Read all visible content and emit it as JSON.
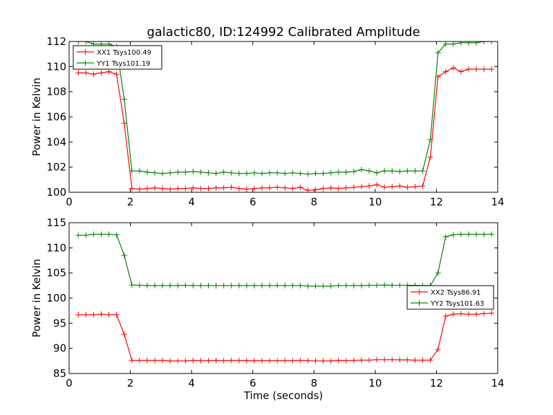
{
  "chart_data": [
    {
      "type": "line",
      "title": "galactic80, ID:124992 Calibrated Amplitude",
      "xlabel": "",
      "ylabel": "Power in Kelvin",
      "xlim": [
        0,
        14
      ],
      "ylim": [
        100,
        112
      ],
      "xticks": [
        "0",
        "2",
        "4",
        "6",
        "8",
        "10",
        "12",
        "14"
      ],
      "yticks": [
        "100",
        "102",
        "104",
        "106",
        "108",
        "110",
        "112"
      ],
      "legend_position": "top-left",
      "x": [
        0.3,
        0.55,
        0.8,
        1.05,
        1.3,
        1.55,
        1.8,
        2.05,
        2.3,
        2.55,
        2.8,
        3.05,
        3.3,
        3.55,
        3.8,
        4.05,
        4.3,
        4.55,
        4.8,
        5.05,
        5.3,
        5.55,
        5.8,
        6.05,
        6.3,
        6.55,
        6.8,
        7.05,
        7.3,
        7.55,
        7.8,
        8.05,
        8.3,
        8.55,
        8.8,
        9.05,
        9.3,
        9.55,
        9.8,
        10.05,
        10.3,
        10.55,
        10.8,
        11.05,
        11.3,
        11.55,
        11.8,
        12.05,
        12.3,
        12.55,
        12.8,
        13.05,
        13.3,
        13.55,
        13.8
      ],
      "series": [
        {
          "name": "XX1 Tsys100.49",
          "color": "#ff0000",
          "values": [
            109.5,
            109.5,
            109.4,
            109.5,
            109.6,
            109.4,
            105.5,
            100.3,
            100.25,
            100.3,
            100.35,
            100.3,
            100.25,
            100.3,
            100.3,
            100.35,
            100.3,
            100.3,
            100.35,
            100.35,
            100.4,
            100.3,
            100.25,
            100.3,
            100.35,
            100.35,
            100.4,
            100.35,
            100.3,
            100.4,
            100.15,
            100.2,
            100.3,
            100.35,
            100.3,
            100.35,
            100.4,
            100.45,
            100.5,
            100.6,
            100.4,
            100.45,
            100.5,
            100.4,
            100.45,
            100.5,
            102.8,
            109.2,
            109.6,
            109.9,
            109.6,
            109.8,
            109.8,
            109.8,
            109.8
          ]
        },
        {
          "name": "YY1 Tsys101.19",
          "color": "#008000",
          "values": [
            112,
            112,
            111.8,
            111.8,
            111.8,
            111.6,
            107.4,
            101.7,
            101.7,
            101.6,
            101.55,
            101.5,
            101.55,
            101.6,
            101.6,
            101.65,
            101.6,
            101.55,
            101.5,
            101.6,
            101.55,
            101.5,
            101.5,
            101.55,
            101.5,
            101.55,
            101.55,
            101.5,
            101.55,
            101.5,
            101.45,
            101.5,
            101.5,
            101.55,
            101.6,
            101.6,
            101.65,
            101.8,
            101.7,
            101.55,
            101.7,
            101.7,
            101.65,
            101.7,
            101.7,
            101.7,
            104.2,
            111.1,
            111.8,
            111.8,
            111.9,
            111.9,
            111.9,
            112,
            112
          ]
        }
      ]
    },
    {
      "type": "line",
      "title": "",
      "xlabel": "Time (seconds)",
      "ylabel": "Power in Kelvin",
      "xlim": [
        0,
        14
      ],
      "ylim": [
        85,
        115
      ],
      "xticks": [
        "0",
        "2",
        "4",
        "6",
        "8",
        "10",
        "12",
        "14"
      ],
      "yticks": [
        "85",
        "90",
        "95",
        "100",
        "105",
        "110",
        "115"
      ],
      "legend_position": "center-right",
      "x": [
        0.3,
        0.55,
        0.8,
        1.05,
        1.3,
        1.55,
        1.8,
        2.05,
        2.3,
        2.55,
        2.8,
        3.05,
        3.3,
        3.55,
        3.8,
        4.05,
        4.3,
        4.55,
        4.8,
        5.05,
        5.3,
        5.55,
        5.8,
        6.05,
        6.3,
        6.55,
        6.8,
        7.05,
        7.3,
        7.55,
        7.8,
        8.05,
        8.3,
        8.55,
        8.8,
        9.05,
        9.3,
        9.55,
        9.8,
        10.05,
        10.3,
        10.55,
        10.8,
        11.05,
        11.3,
        11.55,
        11.8,
        12.05,
        12.3,
        12.55,
        12.8,
        13.05,
        13.3,
        13.55,
        13.8
      ],
      "series": [
        {
          "name": "XX2 Tsys86.91",
          "color": "#ff0000",
          "values": [
            96.7,
            96.7,
            96.7,
            96.8,
            96.7,
            96.7,
            92.8,
            87.6,
            87.6,
            87.6,
            87.6,
            87.6,
            87.5,
            87.5,
            87.5,
            87.6,
            87.55,
            87.55,
            87.6,
            87.55,
            87.6,
            87.6,
            87.55,
            87.55,
            87.55,
            87.55,
            87.55,
            87.55,
            87.55,
            87.6,
            87.55,
            87.5,
            87.5,
            87.5,
            87.6,
            87.55,
            87.6,
            87.65,
            87.65,
            87.75,
            87.75,
            87.75,
            87.7,
            87.7,
            87.65,
            87.65,
            87.65,
            89.8,
            96.4,
            96.8,
            96.9,
            96.8,
            96.8,
            96.9,
            97
          ]
        },
        {
          "name": "YY2 Tsys101.63",
          "color": "#008000",
          "values": [
            112.5,
            112.5,
            112.7,
            112.7,
            112.7,
            112.6,
            108.5,
            102.6,
            102.55,
            102.5,
            102.5,
            102.5,
            102.5,
            102.5,
            102.55,
            102.5,
            102.5,
            102.5,
            102.5,
            102.5,
            102.5,
            102.5,
            102.5,
            102.5,
            102.5,
            102.5,
            102.5,
            102.5,
            102.5,
            102.5,
            102.4,
            102.4,
            102.4,
            102.4,
            102.5,
            102.5,
            102.5,
            102.5,
            102.55,
            102.55,
            102.6,
            102.55,
            102.55,
            102.55,
            102.55,
            102.5,
            102.5,
            105,
            112.2,
            112.6,
            112.7,
            112.7,
            112.7,
            112.7,
            112.7
          ]
        }
      ]
    }
  ]
}
